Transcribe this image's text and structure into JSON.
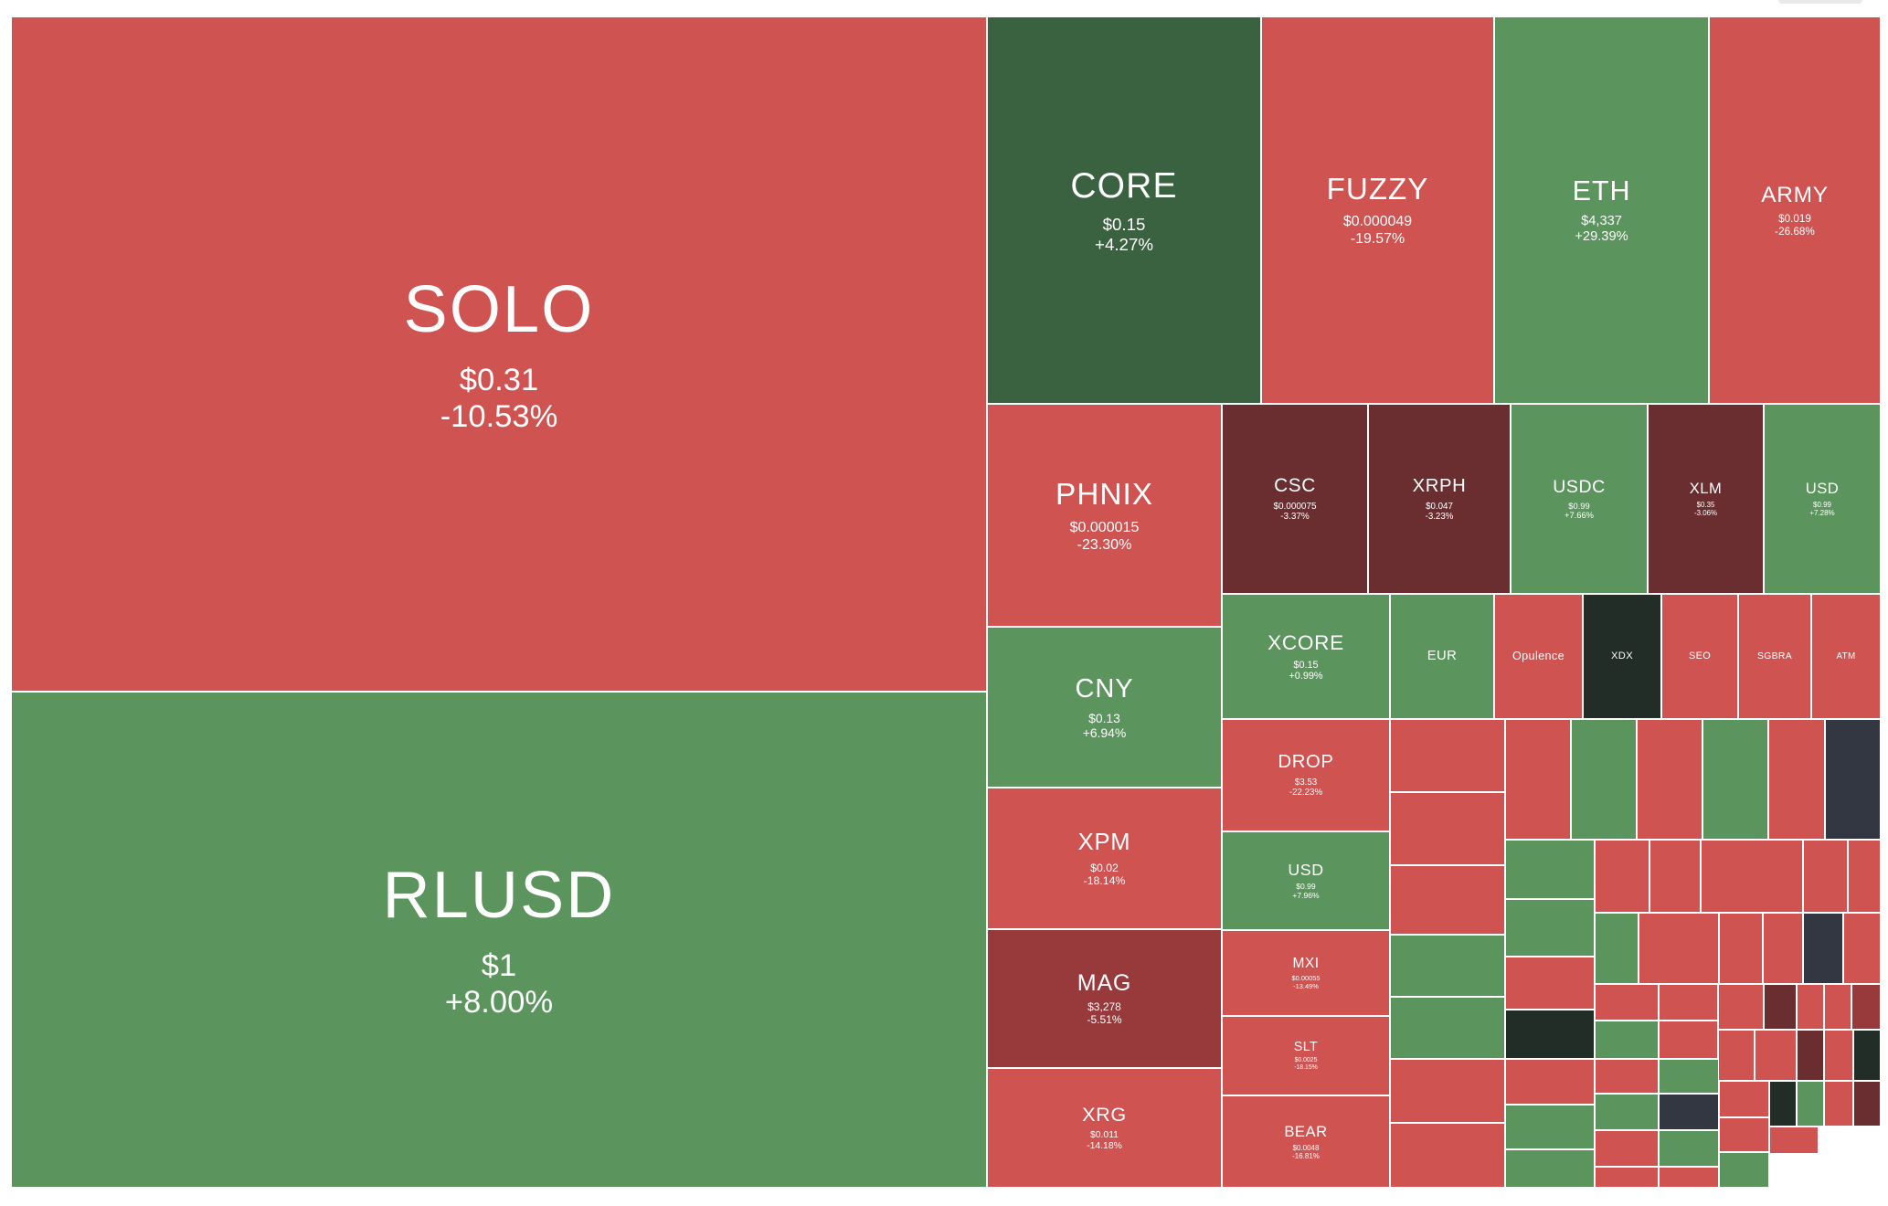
{
  "colors": {
    "red": "#cf5351",
    "green": "#5b955d",
    "darkGreen": "#3a6140",
    "maroon": "#6b2e30",
    "midRed": "#983a3b",
    "nearBlack": "#222d27",
    "slate": "#333742"
  },
  "chart_data": {
    "type": "treemap",
    "tiles": [
      {
        "symbol": "SOLO",
        "price": "$0.31",
        "change": "-10.53%",
        "color": "red"
      },
      {
        "symbol": "RLUSD",
        "price": "$1",
        "change": "+8.00%",
        "color": "green"
      },
      {
        "symbol": "CORE",
        "price": "$0.15",
        "change": "+4.27%",
        "color": "darkGreen"
      },
      {
        "symbol": "FUZZY",
        "price": "$0.000049",
        "change": "-19.57%",
        "color": "red"
      },
      {
        "symbol": "ETH",
        "price": "$4,337",
        "change": "+29.39%",
        "color": "green"
      },
      {
        "symbol": "ARMY",
        "price": "$0.019",
        "change": "-26.68%",
        "color": "red"
      },
      {
        "symbol": "PHNIX",
        "price": "$0.000015",
        "change": "-23.30%",
        "color": "red"
      },
      {
        "symbol": "CNY",
        "price": "$0.13",
        "change": "+6.94%",
        "color": "green"
      },
      {
        "symbol": "XPM",
        "price": "$0.02",
        "change": "-18.14%",
        "color": "red"
      },
      {
        "symbol": "MAG",
        "price": "$3,278",
        "change": "-5.51%",
        "color": "midRed"
      },
      {
        "symbol": "XRG",
        "price": "$0.011",
        "change": "-14.18%",
        "color": "red"
      },
      {
        "symbol": "CSC",
        "price": "$0.000075",
        "change": "-3.37%",
        "color": "maroon"
      },
      {
        "symbol": "XRPH",
        "price": "$0.047",
        "change": "-3.23%",
        "color": "maroon"
      },
      {
        "symbol": "USDC",
        "price": "$0.99",
        "change": "+7.66%",
        "color": "green"
      },
      {
        "symbol": "XLM",
        "price": "$0.35",
        "change": "-3.06%",
        "color": "maroon"
      },
      {
        "symbol": "USD",
        "price": "$0.99",
        "change": "+7.28%",
        "color": "green"
      },
      {
        "symbol": "XCORE",
        "price": "$0.15",
        "change": "+0.99%",
        "color": "green"
      },
      {
        "symbol": "EUR",
        "price": "",
        "change": "",
        "color": "green"
      },
      {
        "symbol": "Opulence",
        "price": "",
        "change": "",
        "color": "red"
      },
      {
        "symbol": "XDX",
        "price": "",
        "change": "",
        "color": "nearBlack"
      },
      {
        "symbol": "SEO",
        "price": "",
        "change": "",
        "color": "red"
      },
      {
        "symbol": "SGBRA",
        "price": "",
        "change": "",
        "color": "red"
      },
      {
        "symbol": "ATM",
        "price": "",
        "change": "",
        "color": "red"
      },
      {
        "symbol": "DROP",
        "price": "$3.53",
        "change": "-22.23%",
        "color": "red"
      },
      {
        "symbol": "USD",
        "price": "$0.99",
        "change": "+7.96%",
        "color": "green"
      },
      {
        "symbol": "MXI",
        "price": "$0.00055",
        "change": "-13.49%",
        "color": "red"
      },
      {
        "symbol": "SLT",
        "price": "$0.0025",
        "change": "-18.15%",
        "color": "red"
      },
      {
        "symbol": "BEAR",
        "price": "$0.0048",
        "change": "-16.81%",
        "color": "red"
      },
      {
        "symbol": "",
        "price": "",
        "change": "",
        "color": "red"
      },
      {
        "symbol": "",
        "price": "",
        "change": "",
        "color": "red"
      },
      {
        "symbol": "",
        "price": "",
        "change": "",
        "color": "red"
      },
      {
        "symbol": "",
        "price": "",
        "change": "",
        "color": "green"
      },
      {
        "symbol": "",
        "price": "",
        "change": "",
        "color": "green"
      },
      {
        "symbol": "",
        "price": "",
        "change": "",
        "color": "red"
      },
      {
        "symbol": "",
        "price": "",
        "change": "",
        "color": "red"
      },
      {
        "symbol": "",
        "price": "",
        "change": "",
        "color": "red"
      },
      {
        "symbol": "",
        "price": "",
        "change": "",
        "color": "green"
      },
      {
        "symbol": "",
        "price": "",
        "change": "",
        "color": "red"
      },
      {
        "symbol": "",
        "price": "",
        "change": "",
        "color": "green"
      },
      {
        "symbol": "",
        "price": "",
        "change": "",
        "color": "red"
      },
      {
        "symbol": "",
        "price": "",
        "change": "",
        "color": "slate"
      },
      {
        "symbol": "",
        "price": "",
        "change": "",
        "color": "green"
      },
      {
        "symbol": "",
        "price": "",
        "change": "",
        "color": "green"
      },
      {
        "symbol": "",
        "price": "",
        "change": "",
        "color": "red"
      },
      {
        "symbol": "",
        "price": "",
        "change": "",
        "color": "nearBlack"
      },
      {
        "symbol": "",
        "price": "",
        "change": "",
        "color": "red"
      },
      {
        "symbol": "",
        "price": "",
        "change": "",
        "color": "green"
      },
      {
        "symbol": "",
        "price": "",
        "change": "",
        "color": "green"
      },
      {
        "symbol": "",
        "price": "",
        "change": "",
        "color": "red"
      },
      {
        "symbol": "",
        "price": "",
        "change": "",
        "color": "red"
      },
      {
        "symbol": "",
        "price": "",
        "change": "",
        "color": "red"
      },
      {
        "symbol": "",
        "price": "",
        "change": "",
        "color": "red"
      },
      {
        "symbol": "",
        "price": "",
        "change": "",
        "color": "red"
      },
      {
        "symbol": "",
        "price": "",
        "change": "",
        "color": "green"
      },
      {
        "symbol": "",
        "price": "",
        "change": "",
        "color": "red"
      },
      {
        "symbol": "",
        "price": "",
        "change": "",
        "color": "red"
      },
      {
        "symbol": "",
        "price": "",
        "change": "",
        "color": "red"
      },
      {
        "symbol": "",
        "price": "",
        "change": "",
        "color": "slate"
      },
      {
        "symbol": "",
        "price": "",
        "change": "",
        "color": "red"
      },
      {
        "symbol": "",
        "price": "",
        "change": "",
        "color": "red"
      },
      {
        "symbol": "",
        "price": "",
        "change": "",
        "color": "green"
      },
      {
        "symbol": "",
        "price": "",
        "change": "",
        "color": "red"
      },
      {
        "symbol": "",
        "price": "",
        "change": "",
        "color": "red"
      },
      {
        "symbol": "",
        "price": "",
        "change": "",
        "color": "red"
      },
      {
        "symbol": "",
        "price": "",
        "change": "",
        "color": "maroon"
      },
      {
        "symbol": "",
        "price": "",
        "change": "",
        "color": "red"
      },
      {
        "symbol": "",
        "price": "",
        "change": "",
        "color": "red"
      },
      {
        "symbol": "",
        "price": "",
        "change": "",
        "color": "midRed"
      },
      {
        "symbol": "",
        "price": "",
        "change": "",
        "color": "red"
      },
      {
        "symbol": "",
        "price": "",
        "change": "",
        "color": "red"
      },
      {
        "symbol": "",
        "price": "",
        "change": "",
        "color": "maroon"
      },
      {
        "symbol": "",
        "price": "",
        "change": "",
        "color": "red"
      },
      {
        "symbol": "",
        "price": "",
        "change": "",
        "color": "nearBlack"
      },
      {
        "symbol": "",
        "price": "",
        "change": "",
        "color": "red"
      },
      {
        "symbol": "",
        "price": "",
        "change": "",
        "color": "green"
      },
      {
        "symbol": "",
        "price": "",
        "change": "",
        "color": "red"
      },
      {
        "symbol": "",
        "price": "",
        "change": "",
        "color": "red"
      },
      {
        "symbol": "",
        "price": "",
        "change": "",
        "color": "green"
      },
      {
        "symbol": "",
        "price": "",
        "change": "",
        "color": "slate"
      },
      {
        "symbol": "",
        "price": "",
        "change": "",
        "color": "green"
      },
      {
        "symbol": "",
        "price": "",
        "change": "",
        "color": "red"
      },
      {
        "symbol": "",
        "price": "",
        "change": "",
        "color": "red"
      },
      {
        "symbol": "",
        "price": "",
        "change": "",
        "color": "nearBlack"
      },
      {
        "symbol": "",
        "price": "",
        "change": "",
        "color": "green"
      },
      {
        "symbol": "",
        "price": "",
        "change": "",
        "color": "red"
      },
      {
        "symbol": "",
        "price": "",
        "change": "",
        "color": "maroon"
      },
      {
        "symbol": "",
        "price": "",
        "change": "",
        "color": "red"
      },
      {
        "symbol": "",
        "price": "",
        "change": "",
        "color": "green"
      },
      {
        "symbol": "",
        "price": "",
        "change": "",
        "color": "red"
      }
    ]
  }
}
